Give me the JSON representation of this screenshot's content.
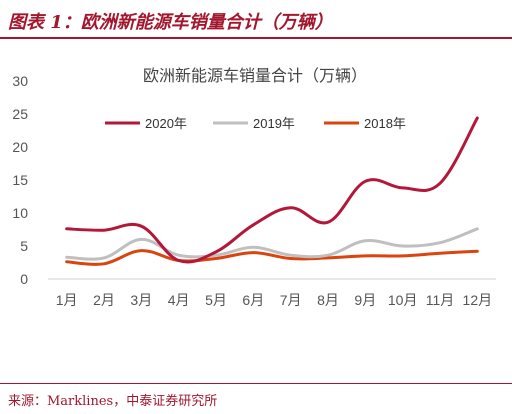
{
  "figure": {
    "title": "图表 1：欧洲新能源车销量合计（万辆）",
    "source": "来源：Marklines，中泰证券研究所"
  },
  "colors": {
    "brand": "#a3172e",
    "series_2020": "#b3173a",
    "series_2019": "#bfbfbf",
    "series_2018": "#d9440f"
  },
  "chart_data": {
    "type": "line",
    "title": "欧洲新能源车销量合计（万辆）",
    "xlabel": "",
    "ylabel": "",
    "categories": [
      "1月",
      "2月",
      "3月",
      "4月",
      "5月",
      "6月",
      "7月",
      "8月",
      "9月",
      "10月",
      "11月",
      "12月"
    ],
    "ylim": [
      0,
      30
    ],
    "yticks": [
      0,
      5,
      10,
      15,
      20,
      25,
      30
    ],
    "grid": false,
    "legend": "top",
    "series": [
      {
        "name": "2020年",
        "color": "#b3173a",
        "values": [
          7.6,
          7.4,
          8.0,
          2.8,
          4.1,
          8.2,
          10.8,
          8.6,
          14.8,
          13.8,
          14.5,
          24.4
        ]
      },
      {
        "name": "2019年",
        "color": "#bfbfbf",
        "values": [
          3.3,
          3.2,
          6.0,
          3.6,
          3.6,
          4.8,
          3.6,
          3.6,
          5.8,
          5.0,
          5.5,
          7.6
        ]
      },
      {
        "name": "2018年",
        "color": "#d9440f",
        "values": [
          2.6,
          2.3,
          4.3,
          2.8,
          3.1,
          4.0,
          3.1,
          3.2,
          3.5,
          3.5,
          3.9,
          4.2
        ]
      }
    ]
  }
}
